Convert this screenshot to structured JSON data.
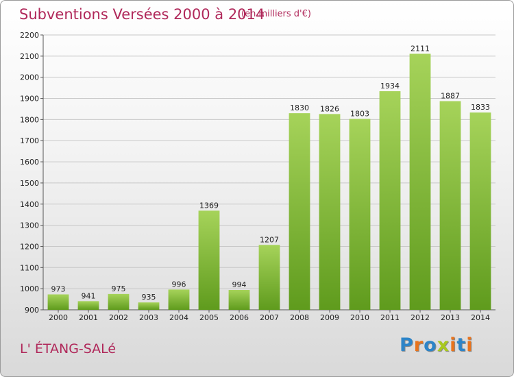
{
  "header": {
    "title": "Subventions Versées 2000 à 2014",
    "unit": "(en milliers d'€)"
  },
  "footer": {
    "city": "L' ÉTANG-SALé",
    "brand": "Proxiti"
  },
  "colors": {
    "title": "#b0285a",
    "bar_light": "#a6d35a",
    "bar_dark": "#5f9b1d",
    "grid": "#c8c8c8",
    "brand_letters": [
      "#2c84c8",
      "#e8731c",
      "#2c84c8",
      "#a8c81e",
      "#e8731c",
      "#2c84c8",
      "#e8731c"
    ]
  },
  "chart_data": {
    "type": "bar",
    "categories": [
      "2000",
      "2001",
      "2002",
      "2003",
      "2004",
      "2005",
      "2006",
      "2007",
      "2008",
      "2009",
      "2010",
      "2011",
      "2012",
      "2013",
      "2014"
    ],
    "values": [
      973,
      941,
      975,
      935,
      996,
      1369,
      994,
      1207,
      1830,
      1826,
      1803,
      1934,
      2111,
      1887,
      1833
    ],
    "ylim": [
      900,
      2200
    ],
    "yticks": [
      900,
      1000,
      1100,
      1200,
      1300,
      1400,
      1500,
      1600,
      1700,
      1800,
      1900,
      2000,
      2100,
      2200
    ],
    "grid": true,
    "xlabel": "",
    "ylabel": ""
  }
}
